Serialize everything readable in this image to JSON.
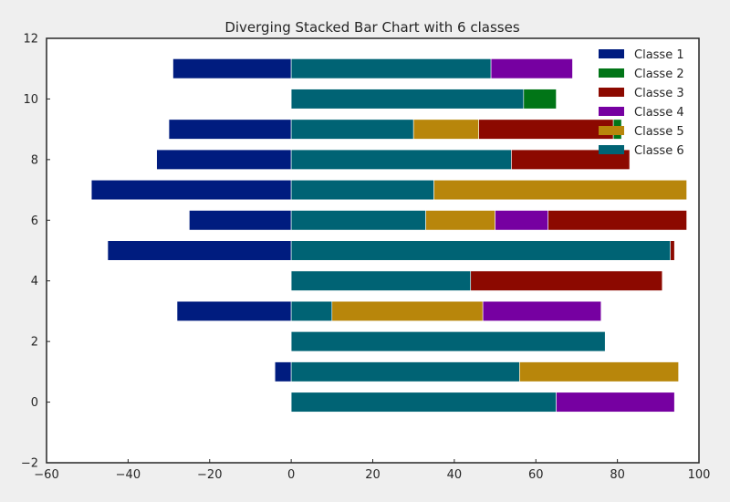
{
  "chart_data": {
    "type": "bar",
    "orientation": "horizontal",
    "stacking": "diverging",
    "title": "Diverging Stacked Bar Chart with 6 classes",
    "xlabel": "",
    "ylabel": "",
    "xlim": [
      -60,
      100
    ],
    "ylim": [
      -2,
      12
    ],
    "xticks": [
      -60,
      -40,
      -20,
      0,
      20,
      40,
      60,
      80,
      100
    ],
    "yticks": [
      -2,
      0,
      2,
      4,
      6,
      8,
      10,
      12
    ],
    "grid": false,
    "legend_position": "top-right",
    "y": [
      0,
      1,
      2,
      3,
      4,
      5,
      6,
      7,
      8,
      9,
      10,
      11
    ],
    "series": [
      {
        "name": "Classe 1",
        "color": "#001c7f",
        "values": [
          0,
          -4,
          0,
          -28,
          0,
          -45,
          -25,
          -49,
          -33,
          -30,
          0,
          -29
        ]
      },
      {
        "name": "Classe 2",
        "color": "#017517",
        "values": [
          0,
          0,
          0,
          0,
          0,
          0,
          0,
          0,
          0,
          2,
          8,
          0
        ]
      },
      {
        "name": "Classe 3",
        "color": "#8c0900",
        "values": [
          0,
          0,
          0,
          0,
          47,
          1,
          34,
          0,
          29,
          33,
          0,
          0
        ]
      },
      {
        "name": "Classe 4",
        "color": "#7600a1",
        "values": [
          29,
          0,
          0,
          29,
          0,
          0,
          13,
          0,
          0,
          0,
          0,
          20
        ]
      },
      {
        "name": "Classe 5",
        "color": "#b8860b",
        "values": [
          0,
          39,
          0,
          37,
          0,
          0,
          17,
          62,
          0,
          16,
          0,
          0
        ]
      },
      {
        "name": "Classe 6",
        "color": "#006374",
        "values": [
          65,
          56,
          77,
          10,
          44,
          93,
          33,
          35,
          54,
          30,
          57,
          49
        ]
      }
    ],
    "positive_stack_order": [
      "Classe 6",
      "Classe 5",
      "Classe 4",
      "Classe 3",
      "Classe 2"
    ]
  }
}
